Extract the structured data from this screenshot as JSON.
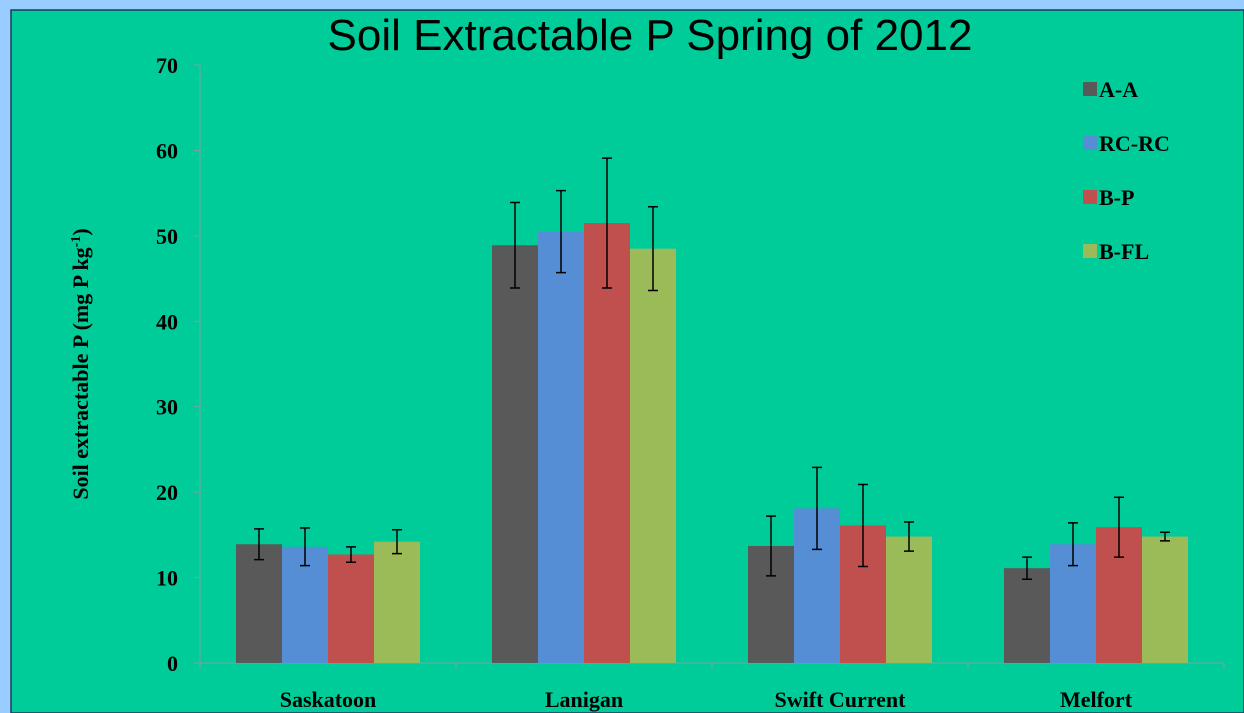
{
  "chart_data": {
    "type": "bar",
    "title": "Soil Extractable P Spring of 2012",
    "y_label": {
      "main": "Soil extractable P (mg P kg",
      "sup": "-1",
      "end": ")"
    },
    "categories": [
      "Saskatoon",
      "Lanigan",
      "Swift Current",
      "Melfort"
    ],
    "series": [
      {
        "name": "A-A",
        "color": "#595959",
        "values": [
          13.9,
          48.9,
          13.7,
          11.1
        ],
        "errors": [
          1.8,
          5.0,
          3.5,
          1.3
        ]
      },
      {
        "name": "RC-RC",
        "color": "#558ed5",
        "values": [
          13.6,
          50.5,
          18.1,
          13.9
        ],
        "errors": [
          2.2,
          4.8,
          4.8,
          2.5
        ]
      },
      {
        "name": "B-P",
        "color": "#c0504d",
        "values": [
          12.7,
          51.5,
          16.1,
          15.9
        ],
        "errors": [
          0.9,
          7.6,
          4.8,
          3.5
        ]
      },
      {
        "name": "B-FL",
        "color": "#9bbb59",
        "values": [
          14.2,
          48.5,
          14.8,
          14.8
        ],
        "errors": [
          1.4,
          4.9,
          1.7,
          0.5
        ]
      }
    ],
    "ylim": [
      0,
      70
    ],
    "yticks": [
      0,
      10,
      20,
      30,
      40,
      50,
      60,
      70
    ],
    "grid": false,
    "legend": "top-right"
  }
}
